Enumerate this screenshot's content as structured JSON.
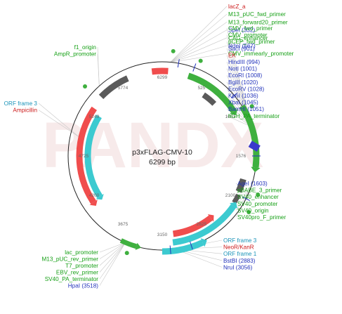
{
  "colors": {
    "feature": "#16a016",
    "ori": "#cc1a1a",
    "enzyme": "#2233bb",
    "frame": "#1a93b8",
    "green_arc": "#3fb03f",
    "red_arc": "#f04d4d",
    "cyan_arc": "#3ccad0",
    "gray_arc": "#5a5a5a",
    "blue_box": "#3a3acc"
  },
  "watermark": "PANDX",
  "plasmid": {
    "name": "p3xFLAG-CMV-10",
    "size_label": "6299 bp"
  },
  "ticks": [
    "6299",
    "525",
    "1051",
    "1576",
    "2100",
    "2625",
    "3150",
    "3675",
    "4200",
    "4725",
    "5249",
    "5774"
  ],
  "labels": {
    "top_right": [
      {
        "text": "lacZ_a",
        "color": "ori"
      },
      {
        "text": "M13_pUC_fwd_primer",
        "color": "feature"
      },
      {
        "text": "M13_forward20_primer",
        "color": "feature"
      },
      {
        "text": "SpeI (332)",
        "color": "enzyme"
      },
      {
        "text": "CAG_enhancer",
        "color": "feature"
      },
      {
        "text": "NdeI (567)",
        "color": "enzyme"
      },
      {
        "text": "CMV_immearly_promoter",
        "color": "feature"
      }
    ],
    "right": [
      {
        "text": "CMV_fwd_primer",
        "color": "feature"
      },
      {
        "text": "CMV_promoter",
        "color": "feature"
      },
      {
        "text": "pCEP_fwd_primer",
        "color": "feature"
      },
      {
        "text": "SacI (901)",
        "color": "enzyme"
      },
      {
        "text": "EK",
        "color": "ori"
      },
      {
        "text": "HindIII (994)",
        "color": "enzyme"
      },
      {
        "text": "NotI (1001)",
        "color": "enzyme"
      },
      {
        "text": "EcoRI (1008)",
        "color": "enzyme"
      },
      {
        "text": "BglII (1020)",
        "color": "enzyme"
      },
      {
        "text": "EcoRV (1028)",
        "color": "enzyme"
      },
      {
        "text": "KpnI (1036)",
        "color": "enzyme"
      },
      {
        "text": "XbaI (1045)",
        "color": "enzyme"
      },
      {
        "text": "BamHI (1051)",
        "color": "enzyme"
      },
      {
        "text": "hGH_PA_terminator",
        "color": "feature"
      }
    ],
    "lower_right": [
      {
        "text": "AgeI (1603)",
        "color": "enzyme"
      },
      {
        "text": "pBABE_3_primer",
        "color": "feature"
      },
      {
        "text": "SV40_enhancer",
        "color": "feature"
      },
      {
        "text": "SV40_promoter",
        "color": "feature"
      },
      {
        "text": "SV40_origin",
        "color": "feature"
      },
      {
        "text": "SV40pro_F_primer",
        "color": "feature"
      }
    ],
    "bottom_right": [
      {
        "text": "ORF frame 3",
        "color": "frame"
      },
      {
        "text": "NeoR/KanR",
        "color": "ori"
      },
      {
        "text": "ORF frame 1",
        "color": "frame"
      },
      {
        "text": "BstBI (2883)",
        "color": "enzyme"
      },
      {
        "text": "NruI (3056)",
        "color": "enzyme"
      }
    ],
    "bottom_left": [
      {
        "text": "lac_promoter",
        "color": "feature"
      },
      {
        "text": "M13_pUC_rev_primer",
        "color": "feature"
      },
      {
        "text": "T7_promoter",
        "color": "feature"
      },
      {
        "text": "EBV_rev_primer",
        "color": "feature"
      },
      {
        "text": "SV40_PA_terminator",
        "color": "feature"
      },
      {
        "text": "HpaI (3518)",
        "color": "enzyme"
      }
    ],
    "top_left": [
      {
        "text": "f1_origin",
        "color": "feature"
      },
      {
        "text": "AmpR_promoter",
        "color": "feature"
      }
    ],
    "left": [
      {
        "text": "ORF frame 3",
        "color": "frame"
      },
      {
        "text": "Ampicillin",
        "color": "ori"
      }
    ]
  }
}
